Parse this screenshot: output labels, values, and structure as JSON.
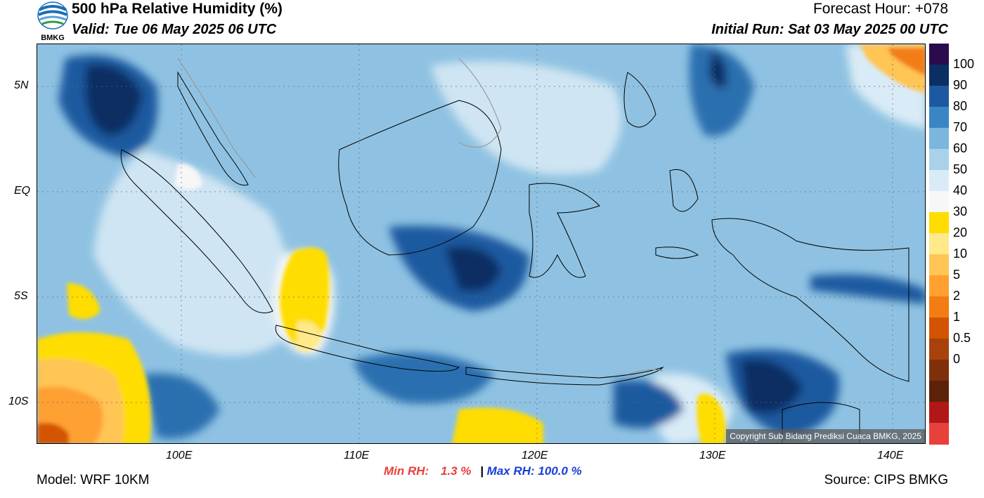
{
  "header": {
    "title": "500 hPa Relative Humidity (%)",
    "valid": "Valid: Tue 06 May 2025 06 UTC",
    "forecast_hour": "Forecast Hour: +078",
    "initial_run": "Initial Run: Sat 03 May 2025 00 UTC",
    "logo_text": "BMKG"
  },
  "axes": {
    "lat_labels": [
      "5N",
      "EQ",
      "5S",
      "10S"
    ],
    "lon_labels": [
      "100E",
      "110E",
      "120E",
      "130E",
      "140E"
    ]
  },
  "colorbar": {
    "labels": [
      "100",
      "90",
      "80",
      "70",
      "60",
      "50",
      "40",
      "30",
      "20",
      "10",
      "5",
      "2",
      "1",
      "0.5",
      "0"
    ],
    "colors": [
      "#2b0a4e",
      "#0b2e63",
      "#1b5aa0",
      "#3a86c4",
      "#7bb6dd",
      "#a9d1ea",
      "#d9ebf6",
      "#f7f7f7",
      "#ffdd00",
      "#ffe98a",
      "#ffc555",
      "#ffa030",
      "#f27d12",
      "#d35400",
      "#a8420a",
      "#7f300a",
      "#5c220a",
      "#b01818",
      "#e8403a"
    ]
  },
  "copyright": "Copyright Sub Bidang Prediksi Cuaca BMKG, 2025",
  "stats": {
    "min_label": "Min RH:",
    "min_value": "1.3 %",
    "separator": "|",
    "max_label": "Max RH:",
    "max_value": "100.0 %",
    "min_color": "#e8403a",
    "max_color": "#1a3ed6"
  },
  "footer": {
    "model": "Model: WRF 10KM",
    "source": "Source: CIPS BMKG"
  }
}
